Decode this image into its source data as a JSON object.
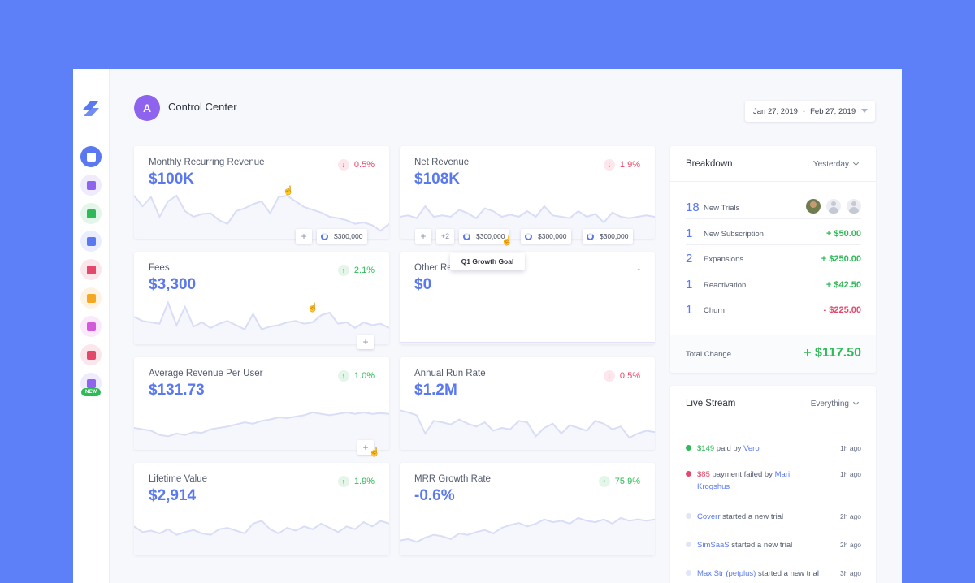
{
  "header": {
    "avatar_letter": "A",
    "title": "Control Center",
    "date_from": "Jan 27, 2019",
    "date_sep": "-",
    "date_to": "Feb 27, 2019"
  },
  "sidebar": {
    "new_badge": "NEW",
    "items": [
      {
        "icon": "dashboard-icon",
        "color": "#5a78f0",
        "active": true
      },
      {
        "icon": "layers-icon",
        "color": "#8e63ee"
      },
      {
        "icon": "list-icon",
        "color": "#2fba57"
      },
      {
        "icon": "chart-icon",
        "color": "#5a78f0"
      },
      {
        "icon": "user-icon",
        "color": "#e2496b"
      },
      {
        "icon": "bar-chart-icon",
        "color": "#f5a623"
      },
      {
        "icon": "mail-icon",
        "color": "#d35ad8"
      },
      {
        "icon": "tools-icon",
        "color": "#e2496b"
      },
      {
        "icon": "apps-icon",
        "color": "#8e63ee"
      }
    ]
  },
  "metrics": [
    {
      "label": "Monthly Recurring Revenue",
      "value": "$100K",
      "change": "0.5%",
      "direction": "down",
      "series": [
        60,
        45,
        58,
        30,
        52,
        60,
        38,
        30,
        34,
        35,
        25,
        20,
        38,
        42,
        48,
        52,
        35,
        58,
        60,
        52,
        44,
        40,
        36,
        30,
        28,
        25,
        20,
        22,
        18,
        10,
        20
      ]
    },
    {
      "label": "Net Revenue",
      "value": "$108K",
      "change": "1.9%",
      "direction": "down",
      "series": [
        30,
        32,
        28,
        45,
        30,
        32,
        30,
        40,
        35,
        28,
        42,
        38,
        30,
        33,
        30,
        38,
        30,
        45,
        32,
        30,
        28,
        38,
        30,
        34,
        22,
        36,
        30,
        28,
        30,
        32,
        30
      ]
    },
    {
      "label": "Fees",
      "value": "$3,300",
      "change": "2.1%",
      "direction": "up",
      "series": [
        38,
        32,
        30,
        28,
        58,
        26,
        52,
        24,
        30,
        22,
        28,
        32,
        26,
        20,
        42,
        20,
        24,
        26,
        30,
        32,
        28,
        30,
        40,
        44,
        28,
        30,
        22,
        30,
        26,
        28,
        22
      ]
    },
    {
      "label": "Other Revenue",
      "value": "$0",
      "change": "-",
      "direction": "neutral",
      "series": [
        1,
        1,
        1,
        1,
        1,
        1,
        1,
        1,
        1,
        1,
        1,
        1,
        1,
        1,
        1,
        1,
        1,
        1,
        1,
        1,
        1,
        1,
        1,
        1,
        1,
        1,
        1,
        1,
        1,
        1,
        1
      ]
    },
    {
      "label": "Average Revenue Per User",
      "value": "$131.73",
      "change": "1.0%",
      "direction": "up",
      "series": [
        30,
        28,
        26,
        20,
        18,
        22,
        20,
        24,
        23,
        28,
        30,
        32,
        35,
        38,
        36,
        40,
        42,
        45,
        44,
        46,
        48,
        52,
        50,
        48,
        50,
        52,
        50,
        52,
        50,
        51,
        50
      ]
    },
    {
      "label": "Annual Run Rate",
      "value": "$1.2M",
      "change": "0.5%",
      "direction": "down",
      "series": [
        55,
        52,
        48,
        22,
        40,
        38,
        35,
        42,
        36,
        32,
        38,
        26,
        30,
        28,
        40,
        38,
        18,
        30,
        36,
        22,
        34,
        30,
        26,
        40,
        36,
        28,
        32,
        16,
        22,
        26,
        24
      ]
    },
    {
      "label": "Lifetime Value",
      "value": "$2,914",
      "change": "1.9%",
      "direction": "up",
      "series": [
        40,
        32,
        34,
        30,
        36,
        28,
        32,
        35,
        30,
        28,
        36,
        38,
        34,
        30,
        44,
        48,
        36,
        30,
        38,
        34,
        40,
        36,
        44,
        38,
        32,
        40,
        36,
        46,
        40,
        48,
        44
      ]
    },
    {
      "label": "MRR Growth Rate",
      "value": "-0.6%",
      "change": "75.9%",
      "direction": "up",
      "series": [
        20,
        22,
        18,
        24,
        28,
        26,
        22,
        30,
        28,
        32,
        35,
        30,
        38,
        42,
        45,
        40,
        44,
        50,
        46,
        48,
        44,
        52,
        48,
        46,
        50,
        44,
        52,
        48,
        50,
        48,
        50
      ]
    }
  ],
  "goal_chips": {
    "add": "+",
    "more": "+2",
    "goal": "$300,000",
    "tooltip": "Q1 Growth Goal"
  },
  "breakdown": {
    "title": "Breakdown",
    "filter": "Yesterday",
    "rows": [
      {
        "count": "18",
        "label": "New Trials",
        "amount": ""
      },
      {
        "count": "1",
        "label": "New Subscription",
        "amount": "+ $50.00",
        "sign": "pos"
      },
      {
        "count": "2",
        "label": "Expansions",
        "amount": "+ $250.00",
        "sign": "pos"
      },
      {
        "count": "1",
        "label": "Reactivation",
        "amount": "+ $42.50",
        "sign": "pos"
      },
      {
        "count": "1",
        "label": "Churn",
        "amount": "- $225.00",
        "sign": "neg"
      }
    ],
    "total_label": "Total Change",
    "total_amount": "+ $117.50"
  },
  "live_stream": {
    "title": "Live Stream",
    "filter": "Everything",
    "items": [
      {
        "dot": "#2fba57",
        "amount": "$149",
        "text_mid": " paid by ",
        "name": "Vero",
        "text_end": "",
        "amount_class": "hl-pos",
        "time": "1h ago"
      },
      {
        "dot": "#e2496b",
        "amount": "$85",
        "text_mid": " payment failed by ",
        "name": "Mari Krogshus",
        "text_end": "",
        "amount_class": "hl-neg",
        "time": "1h ago"
      },
      {
        "dot": "#e0e5f8",
        "amount": "",
        "text_mid": "",
        "name": "Coverr",
        "text_end": " started a new trial",
        "amount_class": "",
        "time": "2h ago"
      },
      {
        "dot": "#e0e5f8",
        "amount": "",
        "text_mid": "",
        "name": "SimSaaS",
        "text_end": " started a new trial",
        "amount_class": "",
        "time": "2h ago"
      },
      {
        "dot": "#e0e5f8",
        "amount": "",
        "text_mid": "",
        "name": "Max Str (petplus)",
        "text_end": " started a new trial",
        "amount_class": "",
        "time": "3h ago"
      }
    ]
  },
  "colors": {
    "background": "#5d7ff8",
    "accent": "#5a78f0",
    "positive": "#2fba57",
    "negative": "#e2496b",
    "sparkline": "#d9ddf6"
  }
}
